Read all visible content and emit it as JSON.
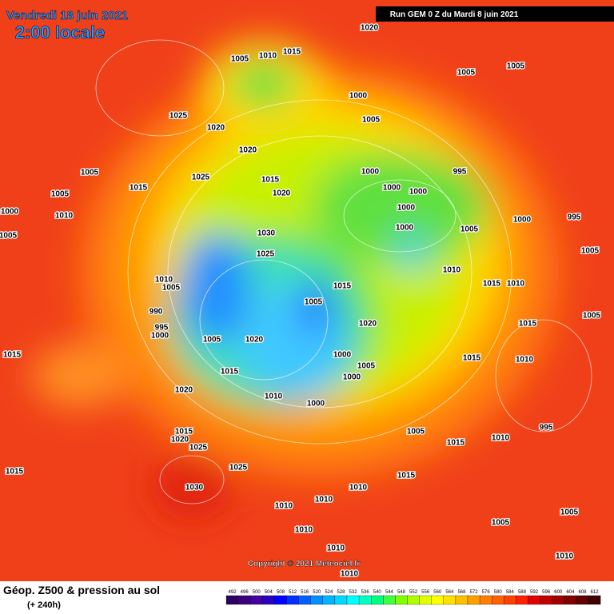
{
  "header": {
    "date": "Vendredi 18 juin 2021",
    "time": "2:00 locale",
    "run": "Run GEM 0 Z du Mardi 8 juin 2021"
  },
  "footer": {
    "title": "Géop. Z500 & pression au sol",
    "subtitle": "(+ 240h)",
    "copyright": "Copyright © 2021 Meteociel.fr"
  },
  "legend": {
    "labels": [
      "492",
      "496",
      "500",
      "504",
      "508",
      "512",
      "516",
      "520",
      "524",
      "528",
      "532",
      "536",
      "540",
      "544",
      "548",
      "552",
      "556",
      "560",
      "564",
      "568",
      "572",
      "576",
      "580",
      "584",
      "588",
      "592",
      "596",
      "600",
      "604",
      "608",
      "612"
    ],
    "colors": [
      "#2c0060",
      "#3a0080",
      "#4400a0",
      "#2a00c0",
      "#0000ff",
      "#0030ff",
      "#0060ff",
      "#0090ff",
      "#00b4ff",
      "#00d8ff",
      "#00ffff",
      "#00ffc0",
      "#00ff80",
      "#40ff40",
      "#80ff00",
      "#b0ff00",
      "#e0ff00",
      "#ffff00",
      "#ffe000",
      "#ffc000",
      "#ffa000",
      "#ff8000",
      "#ff6000",
      "#ff4000",
      "#ff2000",
      "#e00000",
      "#c00000",
      "#a00000",
      "#800000",
      "#600000",
      "#400000"
    ]
  },
  "pressure_labels": [
    "1020",
    "1005",
    "1010",
    "1015",
    "1005",
    "1005",
    "1025",
    "1020",
    "1000",
    "1005",
    "1020",
    "1005",
    "1025",
    "1015",
    "1015",
    "1020",
    "1000",
    "1000",
    "1000",
    "995",
    "1000",
    "1005",
    "1010",
    "1000",
    "1000",
    "995",
    "1005",
    "1030",
    "1000",
    "1005",
    "1025",
    "1010",
    "1005",
    "1010",
    "1005",
    "1015",
    "1010",
    "1015",
    "1005",
    "990",
    "995",
    "1000",
    "1020",
    "1015",
    "1005",
    "1005",
    "1020",
    "1000",
    "1015",
    "1015",
    "1010",
    "1005",
    "1000",
    "1015",
    "1020",
    "1010",
    "1000",
    "1005",
    "1015",
    "1010",
    "1015",
    "1020",
    "1025",
    "995",
    "1015",
    "1025",
    "1030",
    "1015",
    "1010",
    "1010",
    "1010",
    "1005",
    "1005",
    "1010",
    "1010",
    "1010",
    "1010"
  ]
}
